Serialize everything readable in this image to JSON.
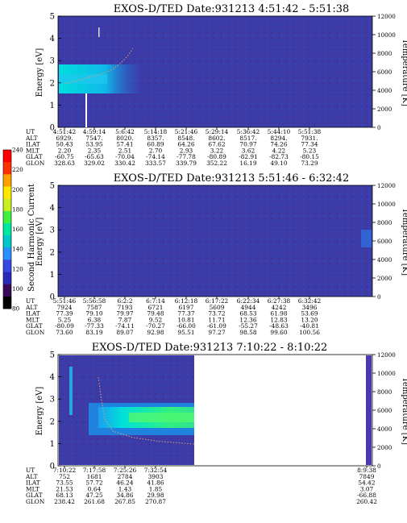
{
  "colors": {
    "background": "#3a3da8",
    "speckle": "#5a2f9a",
    "band_low": "#00e4e4",
    "band_mid": "#35f07a",
    "trace": "#e0a070",
    "colorbar": [
      "#000000",
      "#3a0a5a",
      "#2a2ab8",
      "#3548e0",
      "#2a90ff",
      "#00c8c8",
      "#00e8a0",
      "#40f040",
      "#c8f020",
      "#ffe800",
      "#ffa000",
      "#ff3000",
      "#ff0000"
    ]
  },
  "colorbar": {
    "label": "Second Harmonic Current",
    "ticks": [
      "80",
      "100",
      "120",
      "140",
      "160",
      "180",
      "200",
      "220",
      "240"
    ]
  },
  "panel_labels": {
    "ylabel": "Energy [eV]",
    "ylabel2": "Temperature [K]",
    "row_labels": [
      "UT",
      "ALT",
      "ILAT",
      "MLT",
      "GLAT",
      "GLON"
    ]
  },
  "chart_data": [
    {
      "type": "heatmap",
      "title": "EXOS-D/TED   Date:931213  4:51:42 - 5:51:38",
      "ylim": [
        0,
        5
      ],
      "yticks": [
        "0",
        "1",
        "2",
        "3",
        "4",
        "5"
      ],
      "y2lim": [
        0,
        12000
      ],
      "y2ticks": [
        "0",
        "2000",
        "4000",
        "6000",
        "8000",
        "10000",
        "12000"
      ],
      "ylabel": "Energy [eV]",
      "y2label": "Temperature [K]",
      "orbit_table": [
        [
          "4:51:42",
          "6929.",
          "50.43",
          "2.20",
          "-60.75",
          "328.63"
        ],
        [
          "4:59:14",
          "7547.",
          "53.95",
          "2.35",
          "-65.63",
          "329.02"
        ],
        [
          "5:6:42",
          "8020.",
          "57.41",
          "2.51",
          "-70.04",
          "330.42"
        ],
        [
          "5:14:18",
          "8357.",
          "60.89",
          "2.70",
          "-74.14",
          "333.57"
        ],
        [
          "5:21:46",
          "8548.",
          "64.26",
          "2.93",
          "-77.78",
          "339.79"
        ],
        [
          "5:29:14",
          "8602.",
          "67.62",
          "3.22",
          "-80.89",
          "352.22"
        ],
        [
          "5:36:42",
          "8517.",
          "70.97",
          "3.62",
          "-82.91",
          "16.19"
        ],
        [
          "5:44:10",
          "8294.",
          "74.26",
          "4.22",
          "-82.73",
          "49.10"
        ],
        [
          "5:51:38",
          "7931.",
          "77.34",
          "5.23",
          "-80.15",
          "73.29"
        ]
      ]
    },
    {
      "type": "heatmap",
      "title": "EXOS-D/TED   Date:931213  5:51:46 - 6:32:42",
      "ylim": [
        0,
        5
      ],
      "yticks": [
        "0",
        "1",
        "2",
        "3",
        "4",
        "5"
      ],
      "y2lim": [
        0,
        12000
      ],
      "y2ticks": [
        "0",
        "2000",
        "4000",
        "6000",
        "8000",
        "10000",
        "12000"
      ],
      "ylabel": "Energy [eV]",
      "y2label": "Temperature [K]",
      "orbit_table": [
        [
          "5:51:46",
          "7924",
          "77.39",
          "5.25",
          "-80.09",
          "73.60"
        ],
        [
          "5:56:58",
          "7587",
          "79.10",
          "6.38",
          "-77.33",
          "83.19"
        ],
        [
          "6:2:2",
          "7193",
          "79.97",
          "7.87",
          "-74.11",
          "89.07"
        ],
        [
          "6:7:14",
          "6721",
          "79.48",
          "9.52",
          "-70.27",
          "92.98"
        ],
        [
          "6:12:18",
          "6197",
          "77.37",
          "10.81",
          "-66.00",
          "95.51"
        ],
        [
          "6:17:22",
          "5609",
          "73.72",
          "11.71",
          "-61.09",
          "97.27"
        ],
        [
          "6:22:34",
          "4944",
          "68.53",
          "12.36",
          "-55.27",
          "98.58"
        ],
        [
          "6:27:38",
          "4242",
          "61.98",
          "12.83",
          "-48.63",
          "99.60"
        ],
        [
          "6:32:42",
          "3496",
          "53.69",
          "13.20",
          "-40.81",
          "100.56"
        ]
      ]
    },
    {
      "type": "heatmap",
      "title": "EXOS-D/TED   Date:931213  7:10:22 - 8:10:22",
      "ylim": [
        0,
        5
      ],
      "yticks": [
        "0",
        "1",
        "2",
        "3",
        "4",
        "5"
      ],
      "y2lim": [
        0,
        12000
      ],
      "y2ticks": [
        "0",
        "2000",
        "4000",
        "6000",
        "8000",
        "10000",
        "12000"
      ],
      "ylabel": "Energy [eV]",
      "y2label": "Temperature [K]",
      "orbit_table": [
        [
          "7:10:22",
          "752",
          "73.55",
          "21.53",
          "68.13",
          "238.42"
        ],
        [
          "7:17:58",
          "1681",
          "57.72",
          "0.64",
          "47.25",
          "261.68"
        ],
        [
          "7:25:26",
          "2784",
          "46.24",
          "1.43",
          "34.86",
          "267.85"
        ],
        [
          "7:32:54",
          "3903",
          "41.86",
          "1.85",
          "29.98",
          "270.87"
        ],
        [
          "8:9:38",
          "7849",
          "54.42",
          "3.07",
          "-66.88",
          "260.42"
        ]
      ]
    }
  ]
}
